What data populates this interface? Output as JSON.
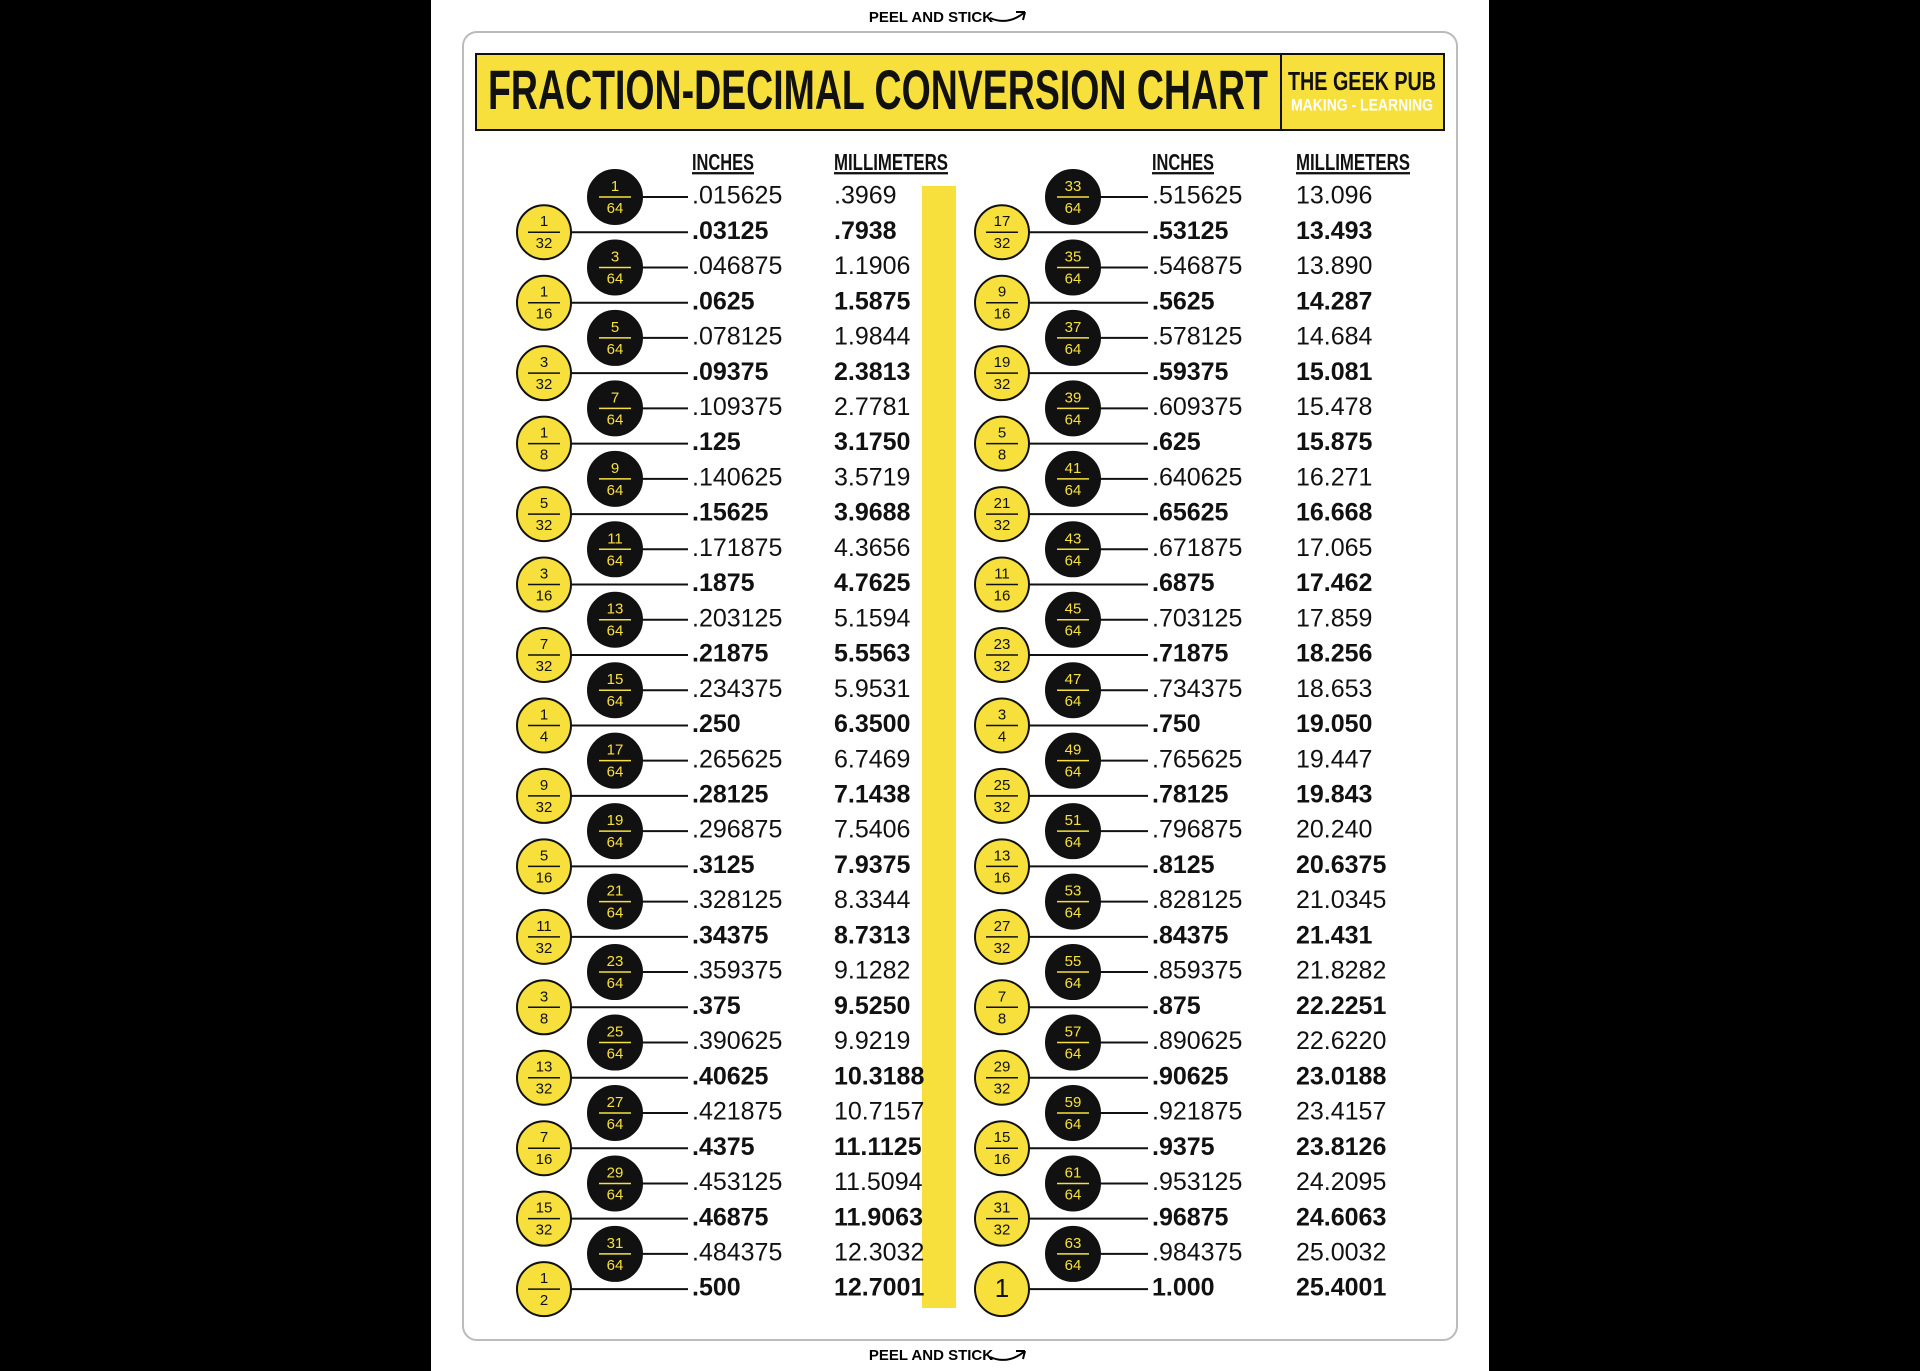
{
  "peel_top": "PEEL AND STICK",
  "header": {
    "title": "FRACTION-DECIMAL CONVERSION CHART",
    "brand": "THE GEEK PUB",
    "tagline": "MAKING - LEARNING"
  },
  "columns": [
    {
      "headers": [
        "INCHES",
        "MILLIMETERS"
      ],
      "rows": [
        [
          "1",
          "64",
          ".015625",
          ".3969"
        ],
        [
          "1",
          "32",
          ".03125",
          ".7938"
        ],
        [
          "3",
          "64",
          ".046875",
          "1.1906"
        ],
        [
          "1",
          "16",
          ".0625",
          "1.5875"
        ],
        [
          "5",
          "64",
          ".078125",
          "1.9844"
        ],
        [
          "3",
          "32",
          ".09375",
          "2.3813"
        ],
        [
          "7",
          "64",
          ".109375",
          "2.7781"
        ],
        [
          "1",
          "8",
          ".125",
          "3.1750"
        ],
        [
          "9",
          "64",
          ".140625",
          "3.5719"
        ],
        [
          "5",
          "32",
          ".15625",
          "3.9688"
        ],
        [
          "11",
          "64",
          ".171875",
          "4.3656"
        ],
        [
          "3",
          "16",
          ".1875",
          "4.7625"
        ],
        [
          "13",
          "64",
          ".203125",
          "5.1594"
        ],
        [
          "7",
          "32",
          ".21875",
          "5.5563"
        ],
        [
          "15",
          "64",
          ".234375",
          "5.9531"
        ],
        [
          "1",
          "4",
          ".250",
          "6.3500"
        ],
        [
          "17",
          "64",
          ".265625",
          "6.7469"
        ],
        [
          "9",
          "32",
          ".28125",
          "7.1438"
        ],
        [
          "19",
          "64",
          ".296875",
          "7.5406"
        ],
        [
          "5",
          "16",
          ".3125",
          "7.9375"
        ],
        [
          "21",
          "64",
          ".328125",
          "8.3344"
        ],
        [
          "11",
          "32",
          ".34375",
          "8.7313"
        ],
        [
          "23",
          "64",
          ".359375",
          "9.1282"
        ],
        [
          "3",
          "8",
          ".375",
          "9.5250"
        ],
        [
          "25",
          "64",
          ".390625",
          "9.9219"
        ],
        [
          "13",
          "32",
          ".40625",
          "10.3188"
        ],
        [
          "27",
          "64",
          ".421875",
          "10.7157"
        ],
        [
          "7",
          "16",
          ".4375",
          "11.1125"
        ],
        [
          "29",
          "64",
          ".453125",
          "11.5094"
        ],
        [
          "15",
          "32",
          ".46875",
          "11.9063"
        ],
        [
          "31",
          "64",
          ".484375",
          "12.3032"
        ],
        [
          "1",
          "2",
          ".500",
          "12.7001"
        ]
      ]
    },
    {
      "headers": [
        "INCHES",
        "MILLIMETERS"
      ],
      "rows": [
        [
          "33",
          "64",
          ".515625",
          "13.096"
        ],
        [
          "17",
          "32",
          ".53125",
          "13.493"
        ],
        [
          "35",
          "64",
          ".546875",
          "13.890"
        ],
        [
          "9",
          "16",
          ".5625",
          "14.287"
        ],
        [
          "37",
          "64",
          ".578125",
          "14.684"
        ],
        [
          "19",
          "32",
          ".59375",
          "15.081"
        ],
        [
          "39",
          "64",
          ".609375",
          "15.478"
        ],
        [
          "5",
          "8",
          ".625",
          "15.875"
        ],
        [
          "41",
          "64",
          ".640625",
          "16.271"
        ],
        [
          "21",
          "32",
          ".65625",
          "16.668"
        ],
        [
          "43",
          "64",
          ".671875",
          "17.065"
        ],
        [
          "11",
          "16",
          ".6875",
          "17.462"
        ],
        [
          "45",
          "64",
          ".703125",
          "17.859"
        ],
        [
          "23",
          "32",
          ".71875",
          "18.256"
        ],
        [
          "47",
          "64",
          ".734375",
          "18.653"
        ],
        [
          "3",
          "4",
          ".750",
          "19.050"
        ],
        [
          "49",
          "64",
          ".765625",
          "19.447"
        ],
        [
          "25",
          "32",
          ".78125",
          "19.843"
        ],
        [
          "51",
          "64",
          ".796875",
          "20.240"
        ],
        [
          "13",
          "16",
          ".8125",
          "20.6375"
        ],
        [
          "53",
          "64",
          ".828125",
          "21.0345"
        ],
        [
          "27",
          "32",
          ".84375",
          "21.431"
        ],
        [
          "55",
          "64",
          ".859375",
          "21.8282"
        ],
        [
          "7",
          "8",
          ".875",
          "22.2251"
        ],
        [
          "57",
          "64",
          ".890625",
          "22.6220"
        ],
        [
          "29",
          "32",
          ".90625",
          "23.0188"
        ],
        [
          "59",
          "64",
          ".921875",
          "23.4157"
        ],
        [
          "15",
          "16",
          ".9375",
          "23.8126"
        ],
        [
          "61",
          "64",
          ".953125",
          "24.2095"
        ],
        [
          "31",
          "32",
          ".96875",
          "24.6063"
        ],
        [
          "63",
          "64",
          ".984375",
          "25.0032"
        ],
        [
          "1",
          "1.000",
          "25.4001"
        ]
      ]
    }
  ],
  "peel_bottom": "PEEL AND STICK"
}
